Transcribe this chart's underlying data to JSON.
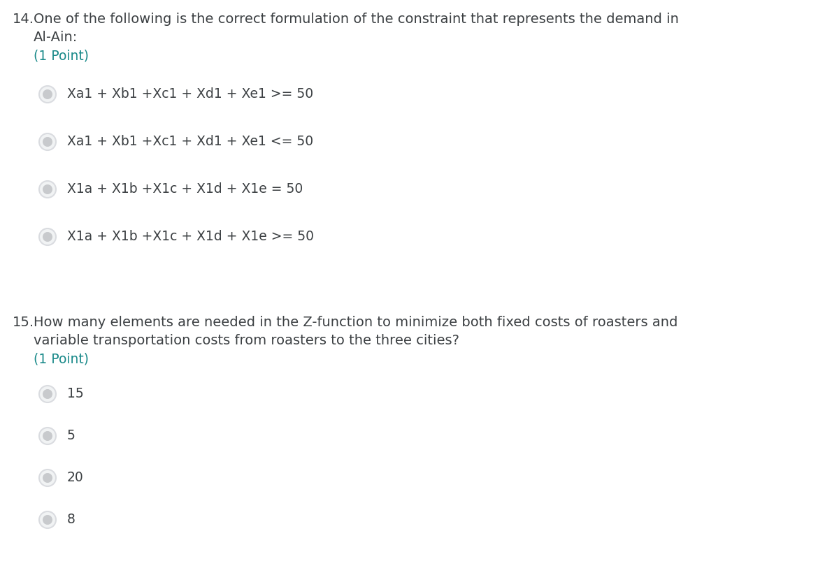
{
  "bg_color": "#ffffff",
  "q14_number": "14.",
  "q14_text_line1": "One of the following is the correct formulation of the constraint that represents the demand in",
  "q14_text_line2": "Al-Ain:",
  "q14_points": "(1 Point)",
  "q14_options": [
    "Xa1 + Xb1 +Xc1 + Xd1 + Xe1 >= 50",
    "Xa1 + Xb1 +Xc1 + Xd1 + Xe1 <= 50",
    "X1a + X1b +X1c + X1d + X1e = 50",
    "X1a + X1b +X1c + X1d + X1e >= 50"
  ],
  "q15_number": "15.",
  "q15_text_line1": "How many elements are needed in the Z-function to minimize both fixed costs of roasters and",
  "q15_text_line2": "variable transportation costs from roasters to the three cities?",
  "q15_points": "(1 Point)",
  "q15_options": [
    "15",
    "5",
    "20",
    "8"
  ],
  "points_color": "#1a8a8a",
  "text_color": "#3c4043",
  "radio_outer_color": "#dadce0",
  "radio_face_color": "#f1f3f4",
  "font_size_q_num": 14.0,
  "font_size_q_text": 14.0,
  "font_size_option": 13.5,
  "font_size_points": 13.5
}
